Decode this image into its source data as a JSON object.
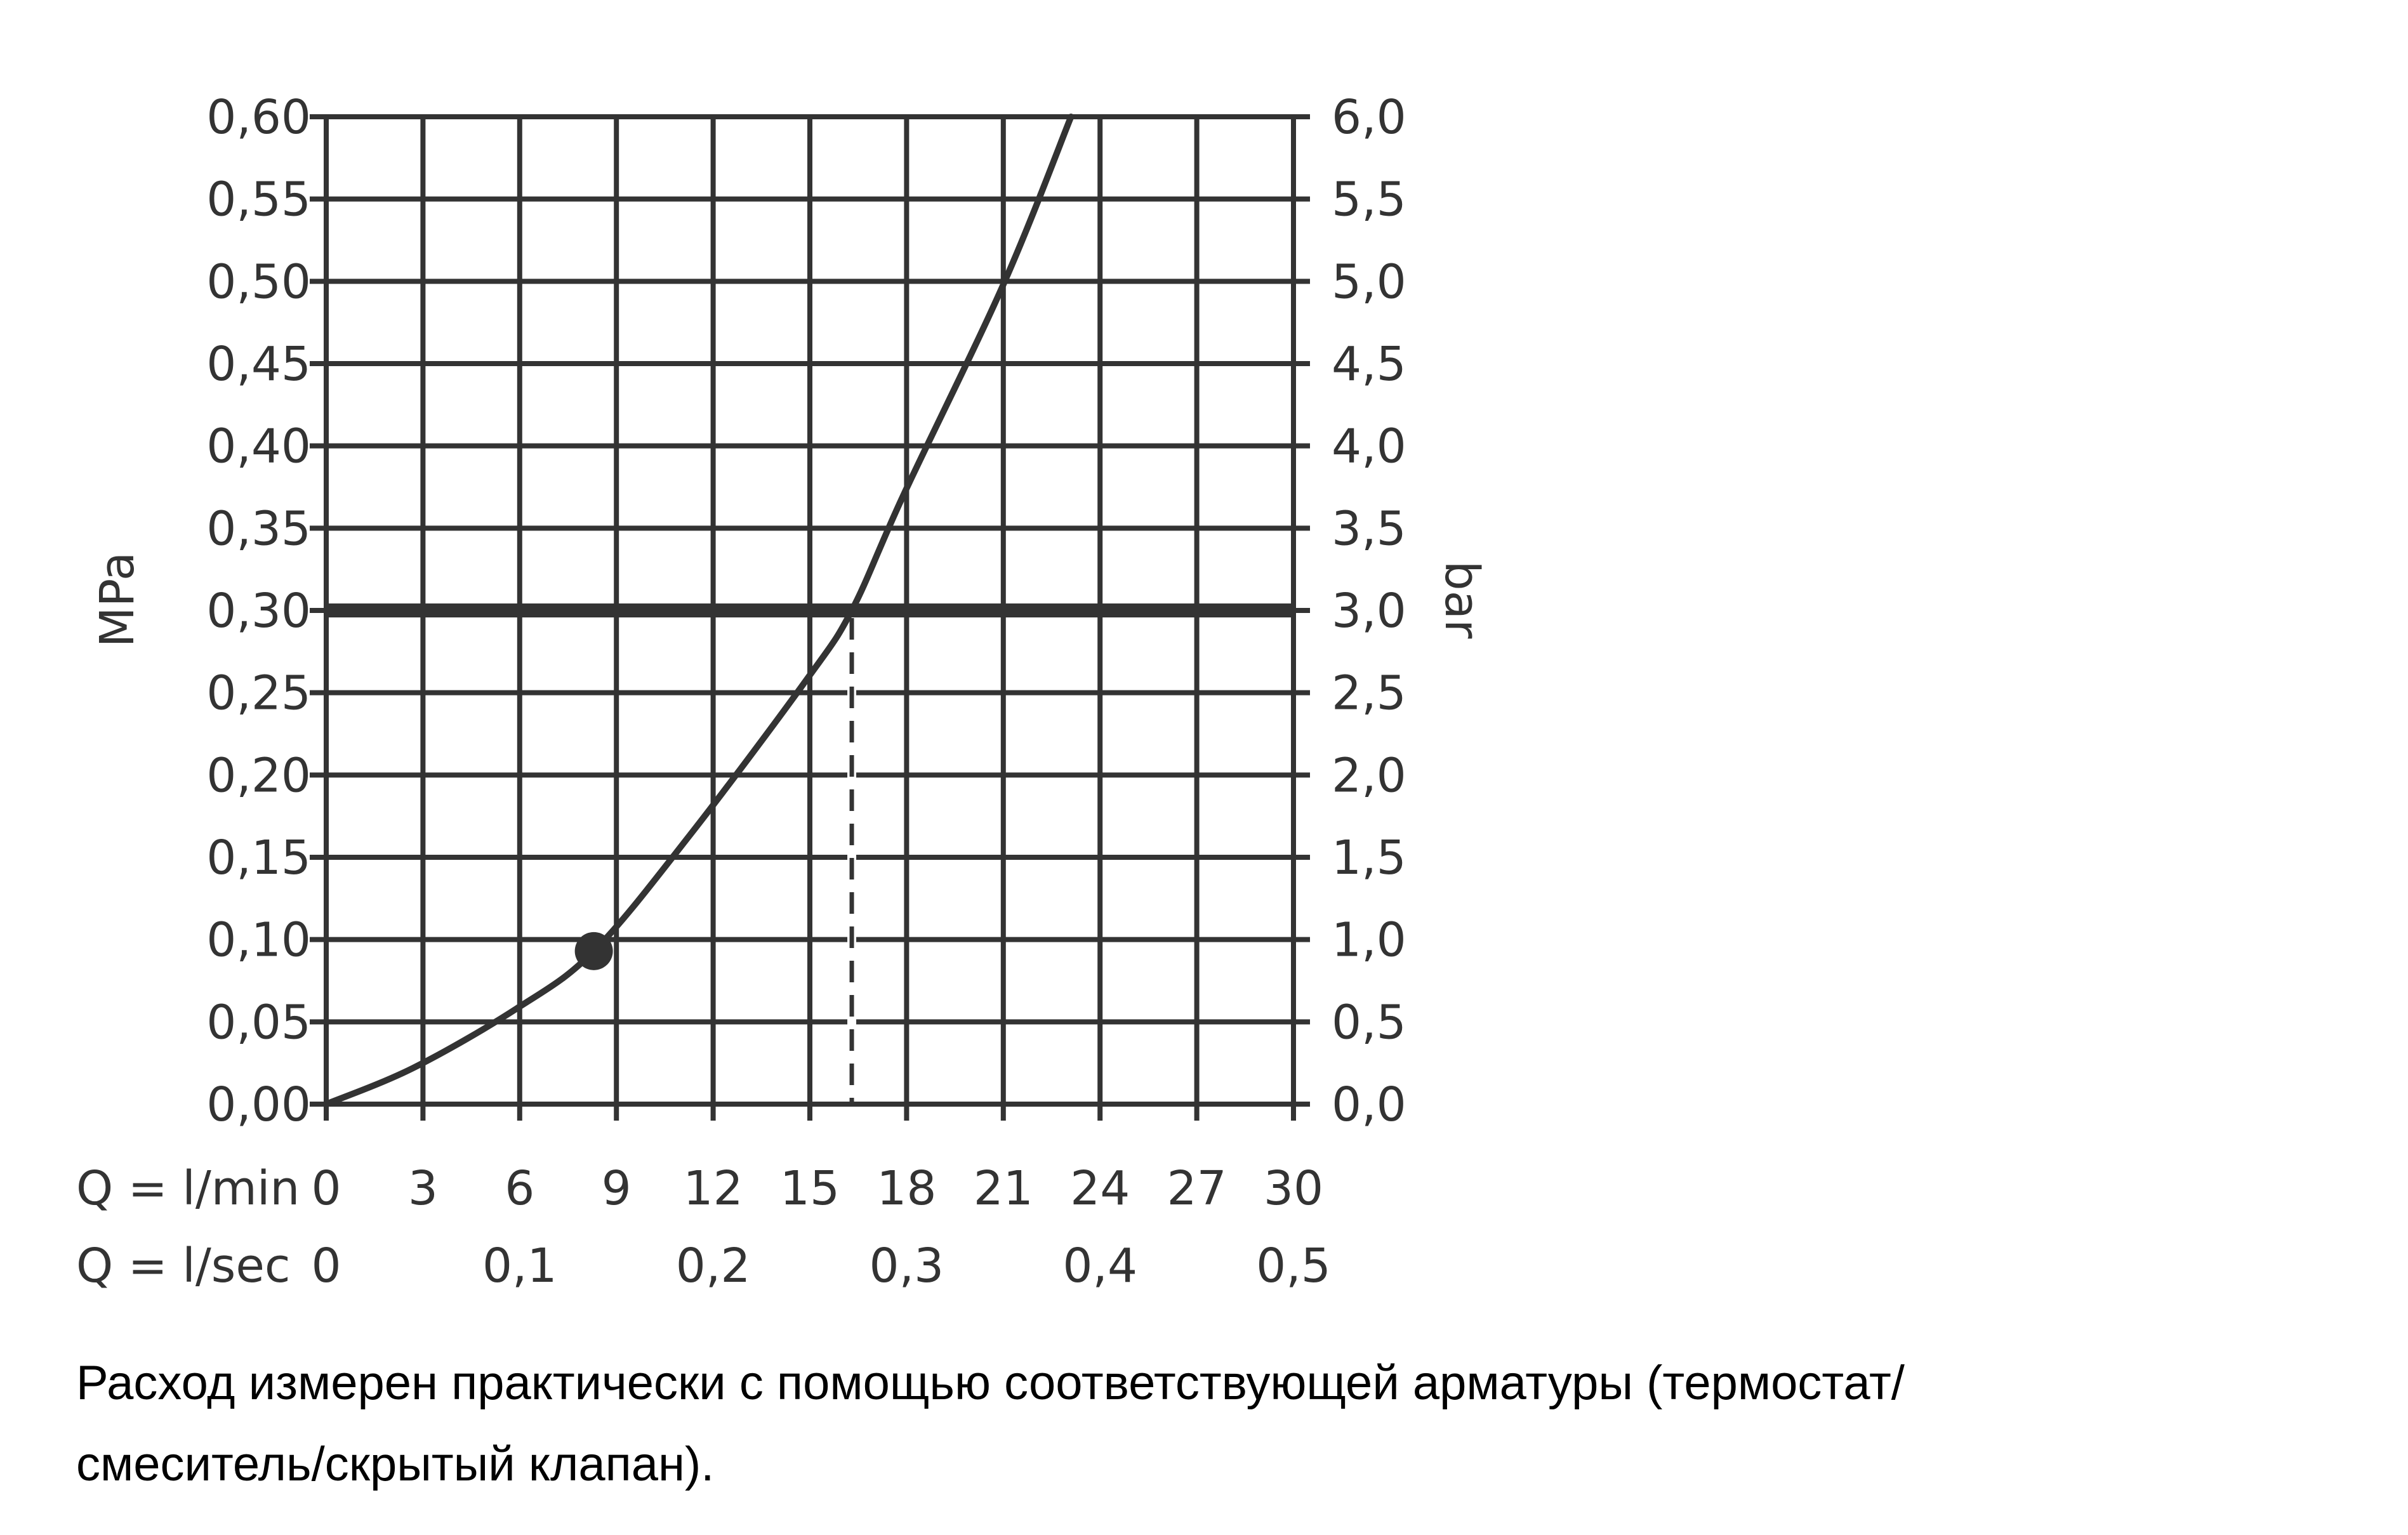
{
  "chart_data": {
    "type": "line",
    "y_left_label": "MPa",
    "y_right_label": "bar",
    "x_row1_label": "Q = l/min",
    "x_row2_label": "Q = l/sec",
    "xlim": [
      0,
      30
    ],
    "ylim": [
      0,
      0.6
    ],
    "grid": true,
    "x_ticks": [
      "0",
      "3",
      "6",
      "9",
      "12",
      "15",
      "18",
      "21",
      "24",
      "27",
      "30"
    ],
    "x_ticks_values": [
      0,
      3,
      6,
      9,
      12,
      15,
      18,
      21,
      24,
      27,
      30
    ],
    "x2_ticks": [
      "0",
      "0,1",
      "0,2",
      "0,3",
      "0,4",
      "0,5"
    ],
    "x2_ticks_values": [
      0,
      6,
      12,
      18,
      24,
      30
    ],
    "y_left_ticks": [
      "0,00",
      "0,05",
      "0,10",
      "0,15",
      "0,20",
      "0,25",
      "0,30",
      "0,35",
      "0,40",
      "0,45",
      "0,50",
      "0,55",
      "0,60"
    ],
    "y_right_ticks": [
      "0,0",
      "0,5",
      "1,0",
      "1,5",
      "2,0",
      "2,5",
      "3,0",
      "3,5",
      "4,0",
      "4,5",
      "5,0",
      "5,5",
      "6,0"
    ],
    "y_ticks_values": [
      0,
      0.05,
      0.1,
      0.15,
      0.2,
      0.25,
      0.3,
      0.35,
      0.4,
      0.45,
      0.5,
      0.55,
      0.6
    ],
    "series": [
      {
        "x": [
          0,
          2.7,
          5.9,
          8.3,
          11.3,
          14.9,
          16.3,
          17.9,
          21.0,
          23.1
        ],
        "y": [
          0,
          0.022,
          0.058,
          0.093,
          0.164,
          0.258,
          0.3,
          0.37,
          0.498,
          0.6
        ]
      }
    ],
    "marker_point": {
      "x": 8.3,
      "y": 0.093
    },
    "reference_line_y": 0.3,
    "dashed_line_x": 16.3,
    "color": "#333333"
  },
  "footnote": {
    "line1": "Расход измерен практически с помощью соответствующей арматуры (термостат/",
    "line2": "смеситель/скрытый клапан)."
  }
}
